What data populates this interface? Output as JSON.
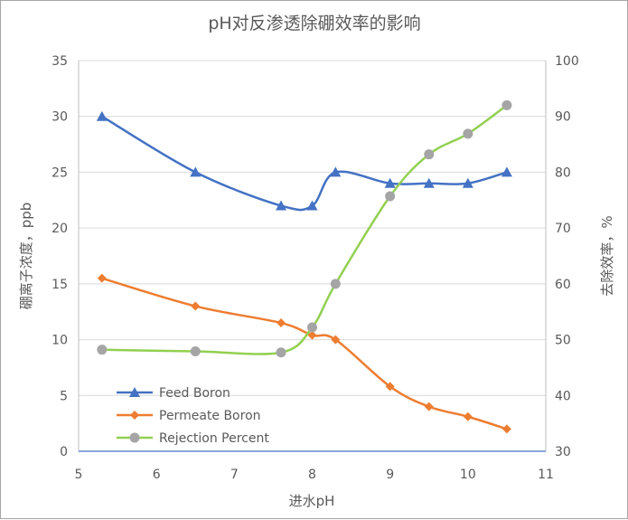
{
  "chart_data": {
    "type": "line",
    "title": "pH对反渗透除硼效率的影响",
    "xlabel": "进水pH",
    "ylabel": "硼离子浓度，ppb",
    "y2label": "去除效率，%",
    "xlim": [
      5,
      11
    ],
    "ylim": [
      0,
      35
    ],
    "y2lim": [
      30,
      100
    ],
    "xticks": [
      5,
      6,
      7,
      8,
      9,
      10,
      11
    ],
    "yticks": [
      0,
      5,
      10,
      15,
      20,
      25,
      30,
      35
    ],
    "y2ticks": [
      30,
      40,
      50,
      60,
      70,
      80,
      90,
      100
    ],
    "grid": "horizontal",
    "legend": "bottom-left",
    "x": [
      5.3,
      6.5,
      7.6,
      8.0,
      8.3,
      9.0,
      9.5,
      10.0,
      10.5
    ],
    "series": [
      {
        "name": "Feed Boron",
        "axis": "left",
        "color": "#4472c4",
        "marker": "triangle",
        "values": [
          30,
          25,
          22,
          22,
          25,
          24,
          24,
          24,
          25
        ]
      },
      {
        "name": "Permeate Boron",
        "axis": "left",
        "color": "#ed7d31",
        "marker": "diamond",
        "values": [
          15.5,
          13,
          11.5,
          10.4,
          10,
          5.8,
          4,
          3.1,
          2
        ]
      },
      {
        "name": "Rejection Percent",
        "axis": "right",
        "color": "#92d050",
        "markerColor": "#a5a5a5",
        "marker": "circle",
        "values": [
          48.2,
          47.9,
          47.7,
          52.2,
          60,
          75.7,
          83.2,
          86.9,
          92
        ]
      }
    ]
  }
}
